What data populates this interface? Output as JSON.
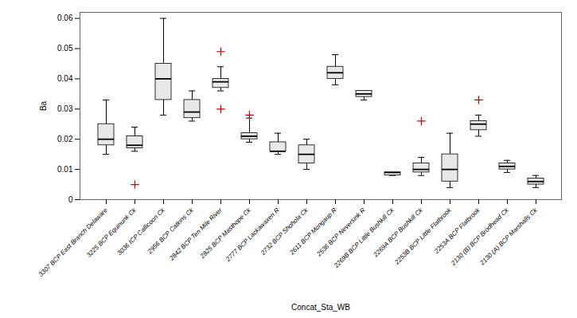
{
  "chart_data": {
    "type": "box",
    "xlabel": "Concat_Sta_WB",
    "ylabel": "Ba",
    "categories": [
      "3307 BCP East Branch Delaware",
      "3225 BCP Equinunk Ck",
      "3036 ICP Callicoon Ck",
      "2956 BCP Catkins Ck",
      "2842 BCP Ten Mile River",
      "2825 BCP Masthope Ck",
      "2777 BCP Lackawaxen R",
      "2732 BCP Shohola Ck",
      "2611 BCP Mongaup R",
      "2536 BCP Neversink R",
      "2269B BCP Little Bushkill Ck",
      "2269A BCP Bushkill Ck",
      "2253B BCP Little Flatbrook",
      "2253A BCP Flatbrook",
      "2130 (B) BCP Brodhead Ck",
      "2130 (A) BCP Marshalls Ck"
    ],
    "boxes": [
      {
        "whislo": 0.015,
        "q1": 0.018,
        "med": 0.02,
        "q3": 0.025,
        "whishi": 0.033,
        "fliers": []
      },
      {
        "whislo": 0.016,
        "q1": 0.017,
        "med": 0.018,
        "q3": 0.021,
        "whishi": 0.024,
        "fliers": [
          0.005
        ]
      },
      {
        "whislo": 0.028,
        "q1": 0.033,
        "med": 0.04,
        "q3": 0.045,
        "whishi": 0.06,
        "fliers": []
      },
      {
        "whislo": 0.026,
        "q1": 0.027,
        "med": 0.029,
        "q3": 0.033,
        "whishi": 0.036,
        "fliers": []
      },
      {
        "whislo": 0.036,
        "q1": 0.037,
        "med": 0.039,
        "q3": 0.04,
        "whishi": 0.044,
        "fliers": [
          0.049,
          0.03
        ]
      },
      {
        "whislo": 0.019,
        "q1": 0.02,
        "med": 0.021,
        "q3": 0.022,
        "whishi": 0.027,
        "fliers": [
          0.028
        ]
      },
      {
        "whislo": 0.015,
        "q1": 0.016,
        "med": 0.016,
        "q3": 0.019,
        "whishi": 0.022,
        "fliers": []
      },
      {
        "whislo": 0.01,
        "q1": 0.012,
        "med": 0.015,
        "q3": 0.018,
        "whishi": 0.02,
        "fliers": []
      },
      {
        "whislo": 0.038,
        "q1": 0.04,
        "med": 0.042,
        "q3": 0.044,
        "whishi": 0.048,
        "fliers": []
      },
      {
        "whislo": 0.033,
        "q1": 0.034,
        "med": 0.035,
        "q3": 0.036,
        "whishi": 0.036,
        "fliers": []
      },
      {
        "whislo": 0.008,
        "q1": 0.008,
        "med": 0.009,
        "q3": 0.009,
        "whishi": 0.009,
        "fliers": []
      },
      {
        "whislo": 0.008,
        "q1": 0.009,
        "med": 0.01,
        "q3": 0.012,
        "whishi": 0.014,
        "fliers": [
          0.026
        ]
      },
      {
        "whislo": 0.004,
        "q1": 0.006,
        "med": 0.01,
        "q3": 0.015,
        "whishi": 0.022,
        "fliers": []
      },
      {
        "whislo": 0.021,
        "q1": 0.023,
        "med": 0.025,
        "q3": 0.026,
        "whishi": 0.028,
        "fliers": [
          0.033
        ]
      },
      {
        "whislo": 0.009,
        "q1": 0.01,
        "med": 0.011,
        "q3": 0.012,
        "whishi": 0.013,
        "fliers": []
      },
      {
        "whislo": 0.004,
        "q1": 0.005,
        "med": 0.006,
        "q3": 0.007,
        "whishi": 0.008,
        "fliers": []
      }
    ],
    "color": "#e8e8e8",
    "marker": "+",
    "ylim": [
      0,
      0.062
    ],
    "yticks": [
      0,
      0.01,
      0.02,
      0.03,
      0.04,
      0.05,
      0.06
    ],
    "grid": false
  }
}
